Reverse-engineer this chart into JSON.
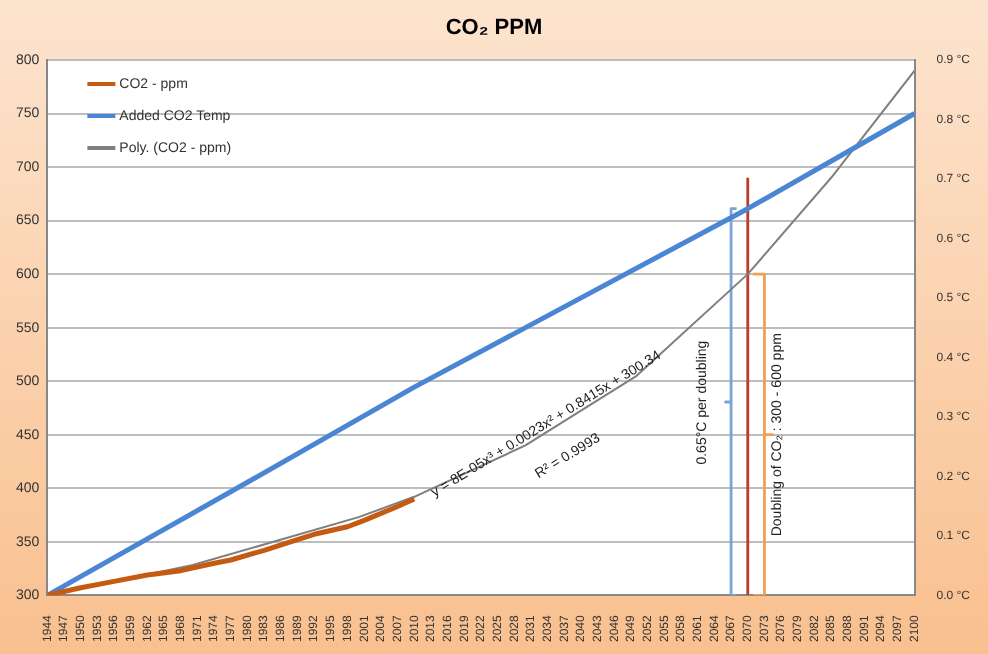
{
  "chart_data": {
    "type": "line",
    "title": "CO₂ PPM",
    "xlim": [
      1944,
      2100
    ],
    "xticks": [
      1944,
      1947,
      1950,
      1953,
      1956,
      1959,
      1962,
      1965,
      1968,
      1971,
      1974,
      1977,
      1980,
      1983,
      1986,
      1989,
      1992,
      1995,
      1998,
      2001,
      2004,
      2007,
      2010,
      2013,
      2016,
      2019,
      2022,
      2025,
      2028,
      2031,
      2034,
      2037,
      2040,
      2043,
      2046,
      2049,
      2052,
      2055,
      2058,
      2061,
      2064,
      2067,
      2070,
      2073,
      2076,
      2079,
      2082,
      2085,
      2088,
      2091,
      2094,
      2097,
      2100
    ],
    "ylim": [
      300,
      800
    ],
    "yticks": [
      300,
      350,
      400,
      450,
      500,
      550,
      600,
      650,
      700,
      750,
      800
    ],
    "y2lim": [
      0,
      0.9
    ],
    "y2ticks": [
      {
        "value": 0,
        "label": "0.0 °C"
      },
      {
        "value": 0.1,
        "label": "0.1 °C"
      },
      {
        "value": 0.2,
        "label": "0.2 °C"
      },
      {
        "value": 0.3,
        "label": "0.3 °C"
      },
      {
        "value": 0.4,
        "label": "0.4 °C"
      },
      {
        "value": 0.5,
        "label": "0.5 °C"
      },
      {
        "value": 0.6,
        "label": "0.6 °C"
      },
      {
        "value": 0.7,
        "label": "0.7 °C"
      },
      {
        "value": 0.8,
        "label": "0.8 °C"
      },
      {
        "value": 0.9,
        "label": "0.9 °C"
      }
    ],
    "series": [
      {
        "name": "CO2 - ppm",
        "color": "#c55a11",
        "x": [
          1944,
          1950,
          1956,
          1962,
          1968,
          1974,
          1977,
          1983,
          1989,
          1992,
          1998,
          2001,
          2007,
          2010
        ],
        "values": [
          300,
          307,
          313,
          319,
          323,
          330,
          333,
          342,
          352,
          357,
          364,
          370,
          383,
          390
        ]
      },
      {
        "name": "Added CO2 Temp",
        "color": "#4a86d4",
        "axis": "y2",
        "x": [
          1944,
          1980,
          2010,
          2040,
          2070,
          2100
        ],
        "values": [
          0,
          0.19,
          0.35,
          0.5,
          0.65,
          0.81
        ]
      },
      {
        "name": "Poly. (CO2 - ppm)",
        "color": "#7f7f7f",
        "x": [
          1944,
          1970,
          2000,
          2010,
          2030,
          2050,
          2070,
          2085,
          2100
        ],
        "values": [
          300,
          328,
          373,
          392,
          440,
          505,
          600,
          690,
          790
        ]
      },
      {
        "color": "#c0392b",
        "x": [
          2070,
          2070
        ],
        "values": [
          300,
          690
        ]
      },
      {
        "color": "#7aa3d8",
        "axis": "y2",
        "x": [
          2068,
          2067,
          2067,
          2066,
          2067,
          2067,
          2068
        ],
        "values": [
          0.65,
          0.65,
          0.325,
          0.325,
          0.325,
          0,
          0
        ]
      },
      {
        "color": "#f0a050",
        "x": [
          2071,
          2073,
          2073,
          2074.5,
          2073,
          2073,
          2071
        ],
        "values": [
          600,
          600,
          450,
          450,
          450,
          300,
          300
        ]
      }
    ],
    "annotations": [
      "y = 8E-05x³ + 0.0023x² + 0.8415x + 300.34",
      "R² = 0.9993",
      "0.65°C per doubling",
      "Doubling of CO₂ : 300 - 600 ppm"
    ],
    "grid": "y",
    "legend": "top left",
    "marker": "none",
    "line_style": "solid"
  }
}
